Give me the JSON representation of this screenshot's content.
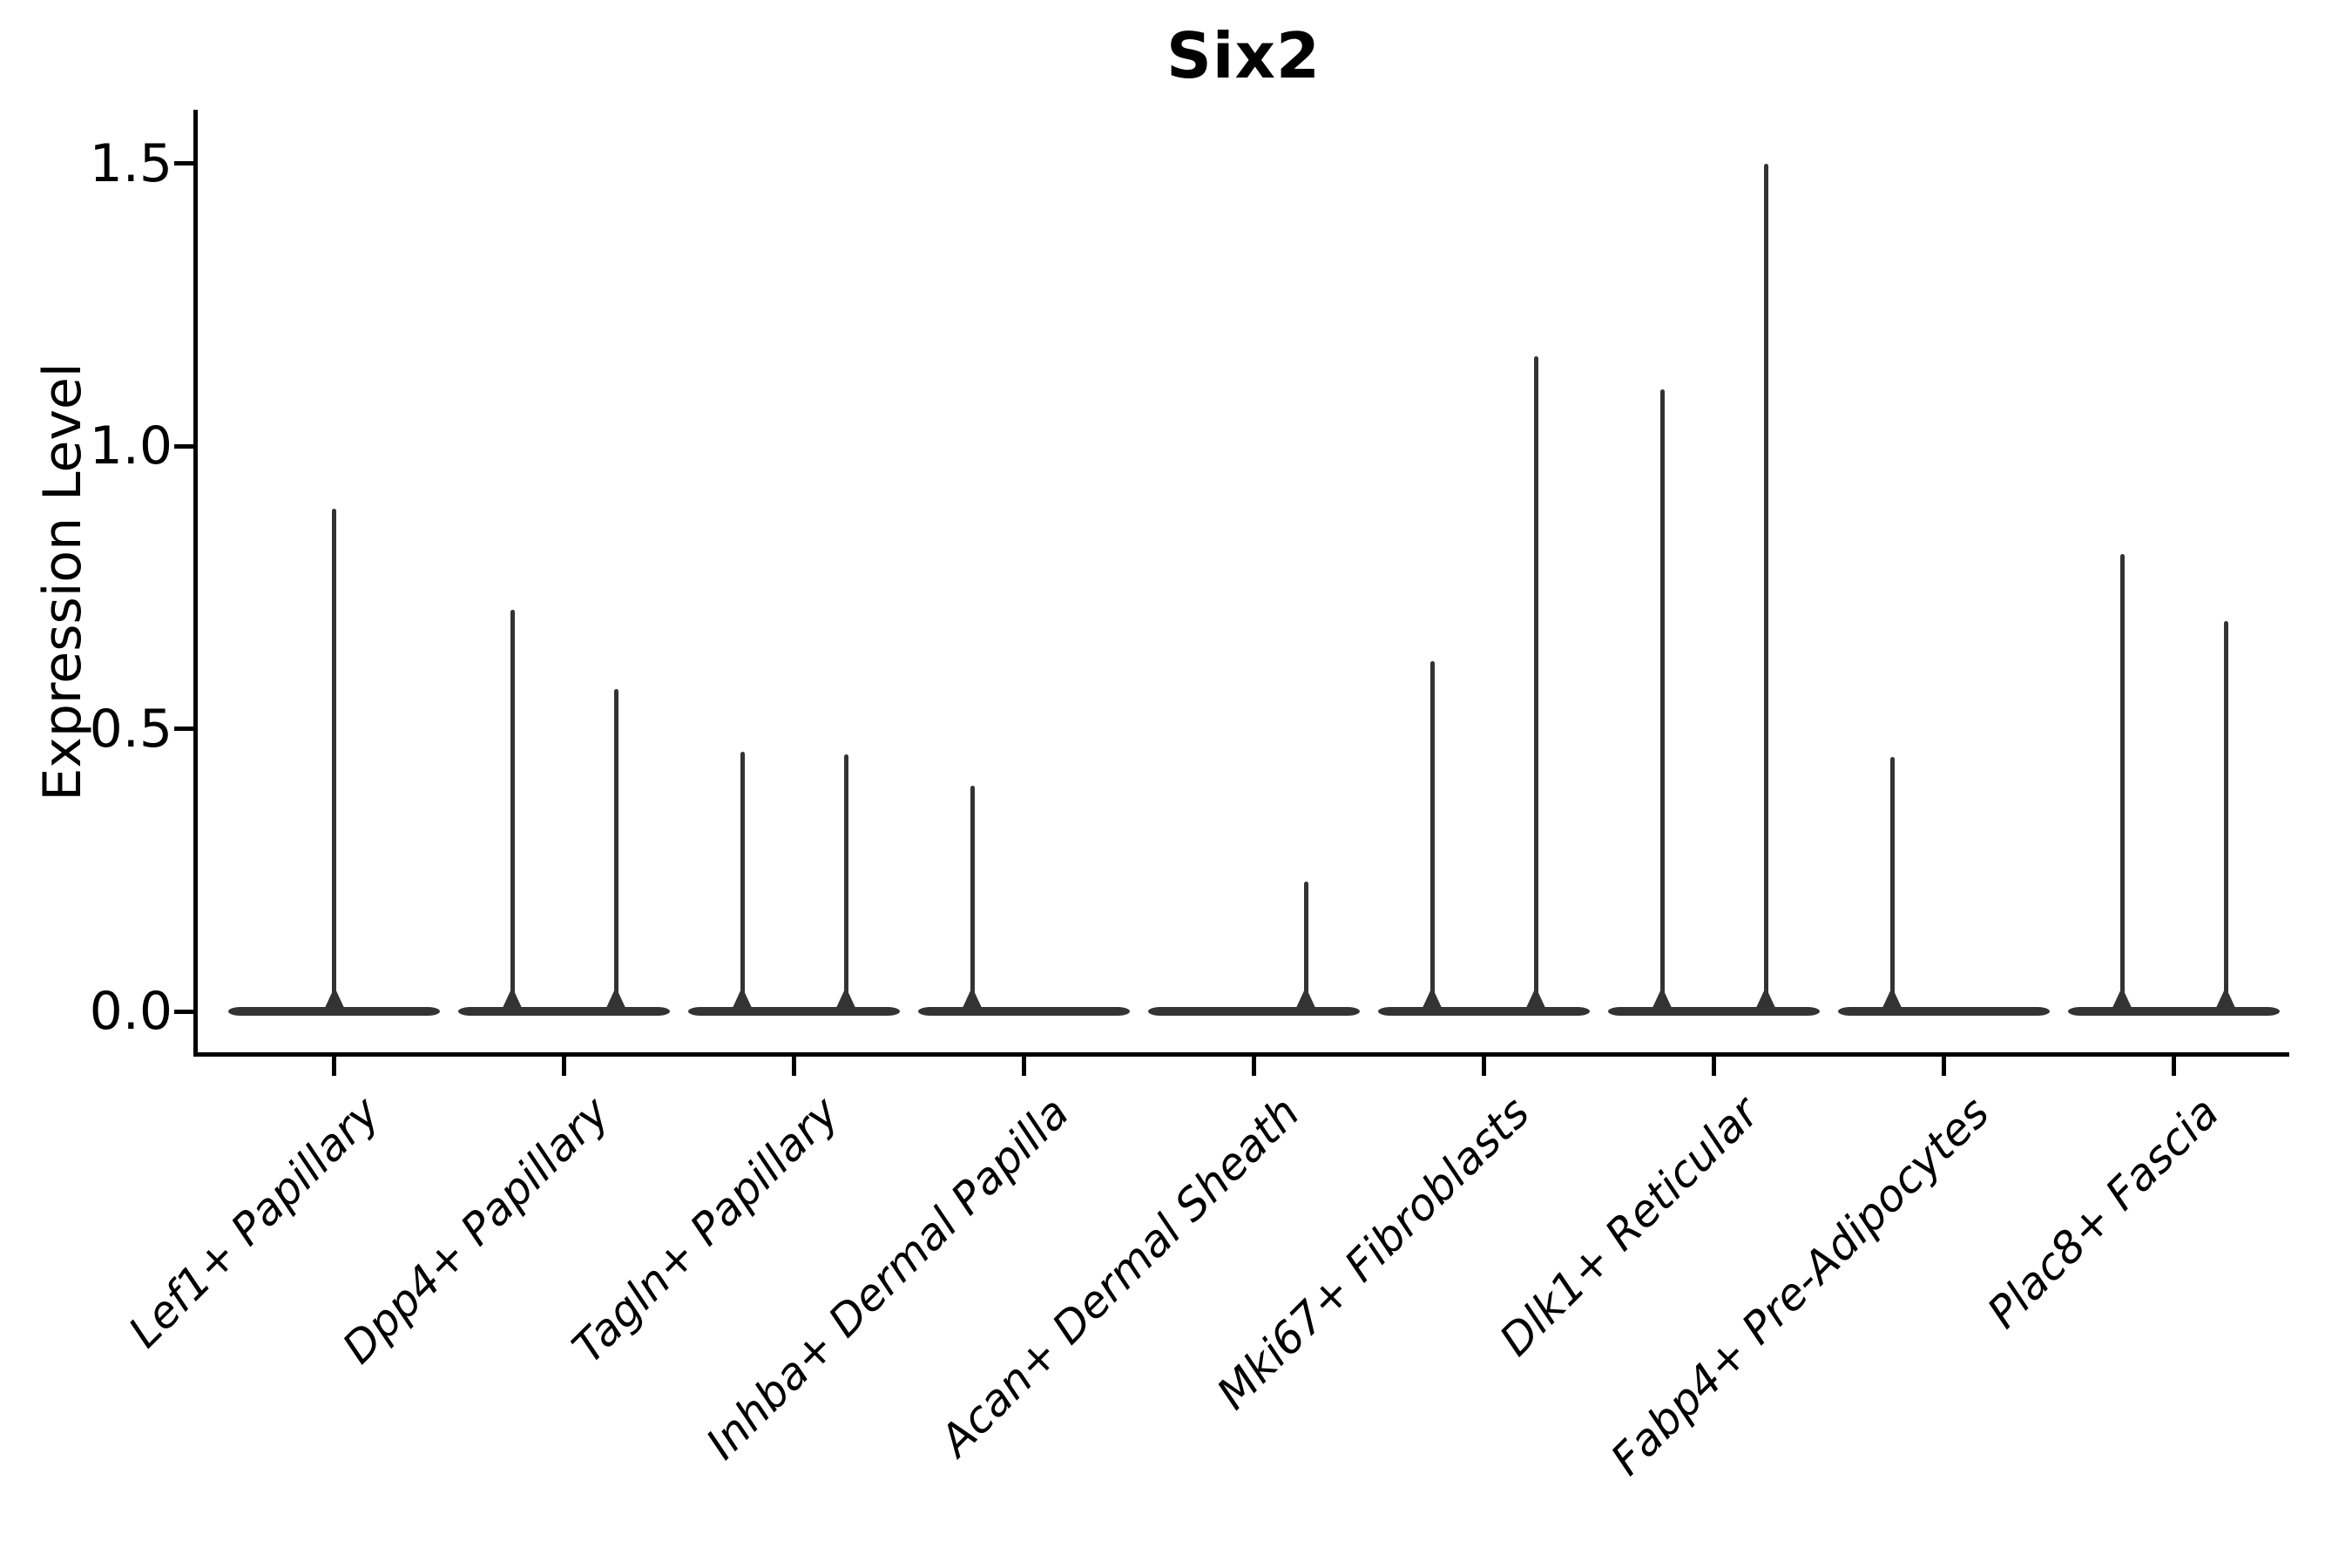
{
  "figure": {
    "title": "Six2",
    "background_color": "#ffffff",
    "ink_color": "#000000",
    "violin_color": "#333333"
  },
  "chart_data": {
    "type": "violin",
    "title": "Six2",
    "xlabel": "",
    "ylabel": "Expression Level",
    "grid": false,
    "legend": null,
    "ylim": [
      -0.07,
      1.6
    ],
    "yticks": [
      {
        "label": "0.0",
        "value": 0.0
      },
      {
        "label": "0.5",
        "value": 0.5
      },
      {
        "label": "1.0",
        "value": 1.0
      },
      {
        "label": "1.5",
        "value": 1.5
      }
    ],
    "baseline_value": 0.0,
    "categories": [
      {
        "label": "Lef1+ Papillary",
        "violins": [
          {
            "slot": "center",
            "max": 0.89
          }
        ]
      },
      {
        "label": "Dpp4+ Papillary",
        "violins": [
          {
            "slot": "left",
            "max": 0.71
          },
          {
            "slot": "right",
            "max": 0.57
          }
        ]
      },
      {
        "label": "Tagln+ Papillary",
        "violins": [
          {
            "slot": "left",
            "max": 0.46
          },
          {
            "slot": "right",
            "max": 0.455
          }
        ]
      },
      {
        "label": "Inhba+ Dermal Papilla",
        "violins": [
          {
            "slot": "left",
            "max": 0.4
          }
        ]
      },
      {
        "label": "Acan+ Dermal Sheath",
        "violins": [
          {
            "slot": "right",
            "max": 0.23
          }
        ]
      },
      {
        "label": "Mki67+ Fibroblasts",
        "violins": [
          {
            "slot": "left",
            "max": 0.62
          },
          {
            "slot": "right",
            "max": 1.16
          }
        ]
      },
      {
        "label": "Dlk1+ Reticular",
        "violins": [
          {
            "slot": "left",
            "max": 1.1
          },
          {
            "slot": "right",
            "max": 1.5
          }
        ]
      },
      {
        "label": "Fabp4+ Pre-Adipocytes",
        "violins": [
          {
            "slot": "left",
            "max": 0.45
          }
        ]
      },
      {
        "label": "Plac8+ Fascia",
        "violins": [
          {
            "slot": "left",
            "max": 0.81
          },
          {
            "slot": "right",
            "max": 0.69
          }
        ]
      }
    ]
  }
}
